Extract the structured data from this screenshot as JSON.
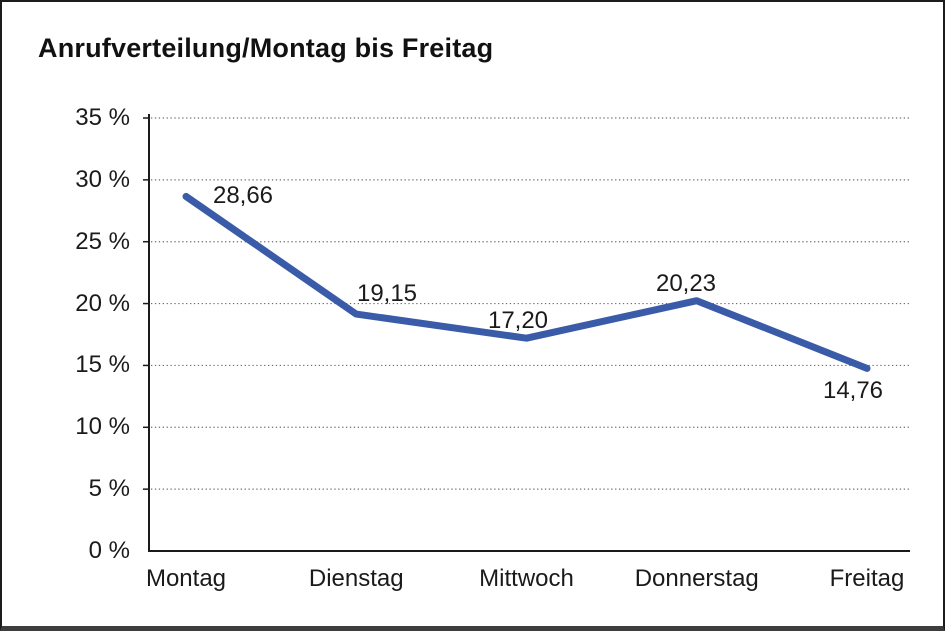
{
  "chart_data": {
    "type": "line",
    "title": "Anrufverteilung/Montag bis Freitag",
    "categories": [
      "Montag",
      "Dienstag",
      "Mittwoch",
      "Donnerstag",
      "Freitag"
    ],
    "values": [
      28.66,
      19.15,
      17.2,
      20.23,
      14.76
    ],
    "data_labels": [
      "28,66",
      "19,15",
      "17,20",
      "20,23",
      "14,76"
    ],
    "xlabel": "",
    "ylabel": "",
    "ylim": [
      0,
      35
    ],
    "ytick_step": 5,
    "ytick_labels": [
      "0 %",
      "5 %",
      "10 %",
      "15 %",
      "20 %",
      "25 %",
      "30 %",
      "35 %"
    ],
    "grid": "horizontal-dotted",
    "legend": "none"
  },
  "colors": {
    "line": "#3A5BA8",
    "text": "#1a1a1a",
    "grid": "#6e6e6e",
    "axis": "#1a1a1a",
    "background": "#ffffff",
    "border": "#1c1c1c"
  }
}
